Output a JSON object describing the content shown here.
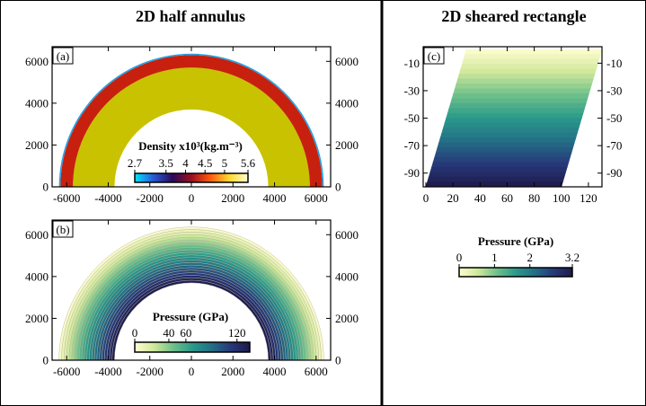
{
  "titles": {
    "left": "2D half annulus",
    "right": "2D sheared rectangle"
  },
  "colors": {
    "yellow_fill": "#c8c200",
    "red_ring": "#c8200f",
    "blue_edge": "#23a3e6",
    "divider": "#000000"
  },
  "chart_data": [
    {
      "id": "a",
      "panel_label": "(a)",
      "type": "heatmap",
      "description_field": "density",
      "xlim": [
        -6700,
        6700
      ],
      "ylim": [
        0,
        6700
      ],
      "xticks": [
        -6000,
        -4000,
        -2000,
        0,
        2000,
        4000,
        6000
      ],
      "yticks": [
        0,
        2000,
        4000,
        6000
      ],
      "xtick_labels": [
        "-6000",
        "-4000",
        "-2000",
        "0",
        "2000",
        "4000",
        "6000"
      ],
      "ytick_labels": [
        "0",
        "2000",
        "4000",
        "6000"
      ],
      "annulus": {
        "inner_radius": 3700,
        "outer_radius": 6370
      },
      "layers": [
        {
          "r_inner": 3700,
          "r_outer": 5700,
          "density": 5.6,
          "color": "#c8c200"
        },
        {
          "r_inner": 5700,
          "r_outer": 6300,
          "density": 4.8,
          "color": "#c8200f"
        },
        {
          "r_inner": 6300,
          "r_outer": 6370,
          "density": 2.7,
          "color": "#23a3e6"
        }
      ],
      "colorbar": {
        "label": "Density x10³(kg.m⁻³)",
        "tick_labels": [
          "2.7",
          "3.5",
          "4",
          "4.5",
          "5",
          "5.6"
        ],
        "ticks": [
          2.7,
          3.5,
          4,
          4.5,
          5,
          5.6
        ],
        "range": [
          2.7,
          5.6
        ],
        "stops": [
          "#00e5ff",
          "#2a57d6",
          "#2b0a5a",
          "#9b1020",
          "#ff5a10",
          "#ffd830",
          "#ffffd0"
        ]
      }
    },
    {
      "id": "b",
      "panel_label": "(b)",
      "type": "heatmap",
      "description_field": "pressure",
      "xlim": [
        -6700,
        6700
      ],
      "ylim": [
        0,
        6700
      ],
      "xticks": [
        -6000,
        -4000,
        -2000,
        0,
        2000,
        4000,
        6000
      ],
      "yticks": [
        0,
        2000,
        4000,
        6000
      ],
      "xtick_labels": [
        "-6000",
        "-4000",
        "-2000",
        "0",
        "2000",
        "4000",
        "6000"
      ],
      "ytick_labels": [
        "0",
        "2000",
        "4000",
        "6000"
      ],
      "annulus": {
        "inner_radius": 3700,
        "outer_radius": 6370
      },
      "n_bands": 22,
      "value_range": [
        0,
        135
      ],
      "colorbar": {
        "label": "Pressure (GPa)",
        "tick_labels": [
          "0",
          "40",
          "60",
          "120"
        ],
        "ticks": [
          0,
          40,
          60,
          120
        ],
        "range": [
          0,
          135
        ],
        "stops": [
          "#fffdd0",
          "#cfe89a",
          "#6fc08a",
          "#2a9a8a",
          "#236f86",
          "#27397a",
          "#1e1a4a"
        ]
      }
    },
    {
      "id": "c",
      "panel_label": "(c)",
      "type": "heatmap",
      "description_field": "pressure",
      "xlim": [
        -2,
        130
      ],
      "ylim": [
        -100,
        2
      ],
      "xticks": [
        0,
        20,
        40,
        60,
        80,
        100,
        120
      ],
      "yticks": [
        -10,
        -30,
        -50,
        -70,
        -90
      ],
      "xtick_labels": [
        "0",
        "20",
        "40",
        "60",
        "80",
        "100",
        "120"
      ],
      "ytick_labels": [
        "-10",
        "-30",
        "-50",
        "-70",
        "-90"
      ],
      "parallelogram": {
        "bottom_left": [
          0,
          -100
        ],
        "bottom_right": [
          100,
          -100
        ],
        "top_right": [
          130,
          0
        ],
        "top_left": [
          30,
          0
        ]
      },
      "n_bands": 28,
      "value_range": [
        0,
        3.2
      ],
      "colorbar": {
        "label": "Pressure (GPa)",
        "tick_labels": [
          "0",
          "1",
          "2",
          "3.2"
        ],
        "ticks": [
          0,
          1,
          2,
          3.2
        ],
        "range": [
          0,
          3.2
        ],
        "stops": [
          "#fffdd0",
          "#cfe89a",
          "#6fc08a",
          "#2a9a8a",
          "#236f86",
          "#27397a",
          "#1e1a4a"
        ]
      }
    }
  ]
}
